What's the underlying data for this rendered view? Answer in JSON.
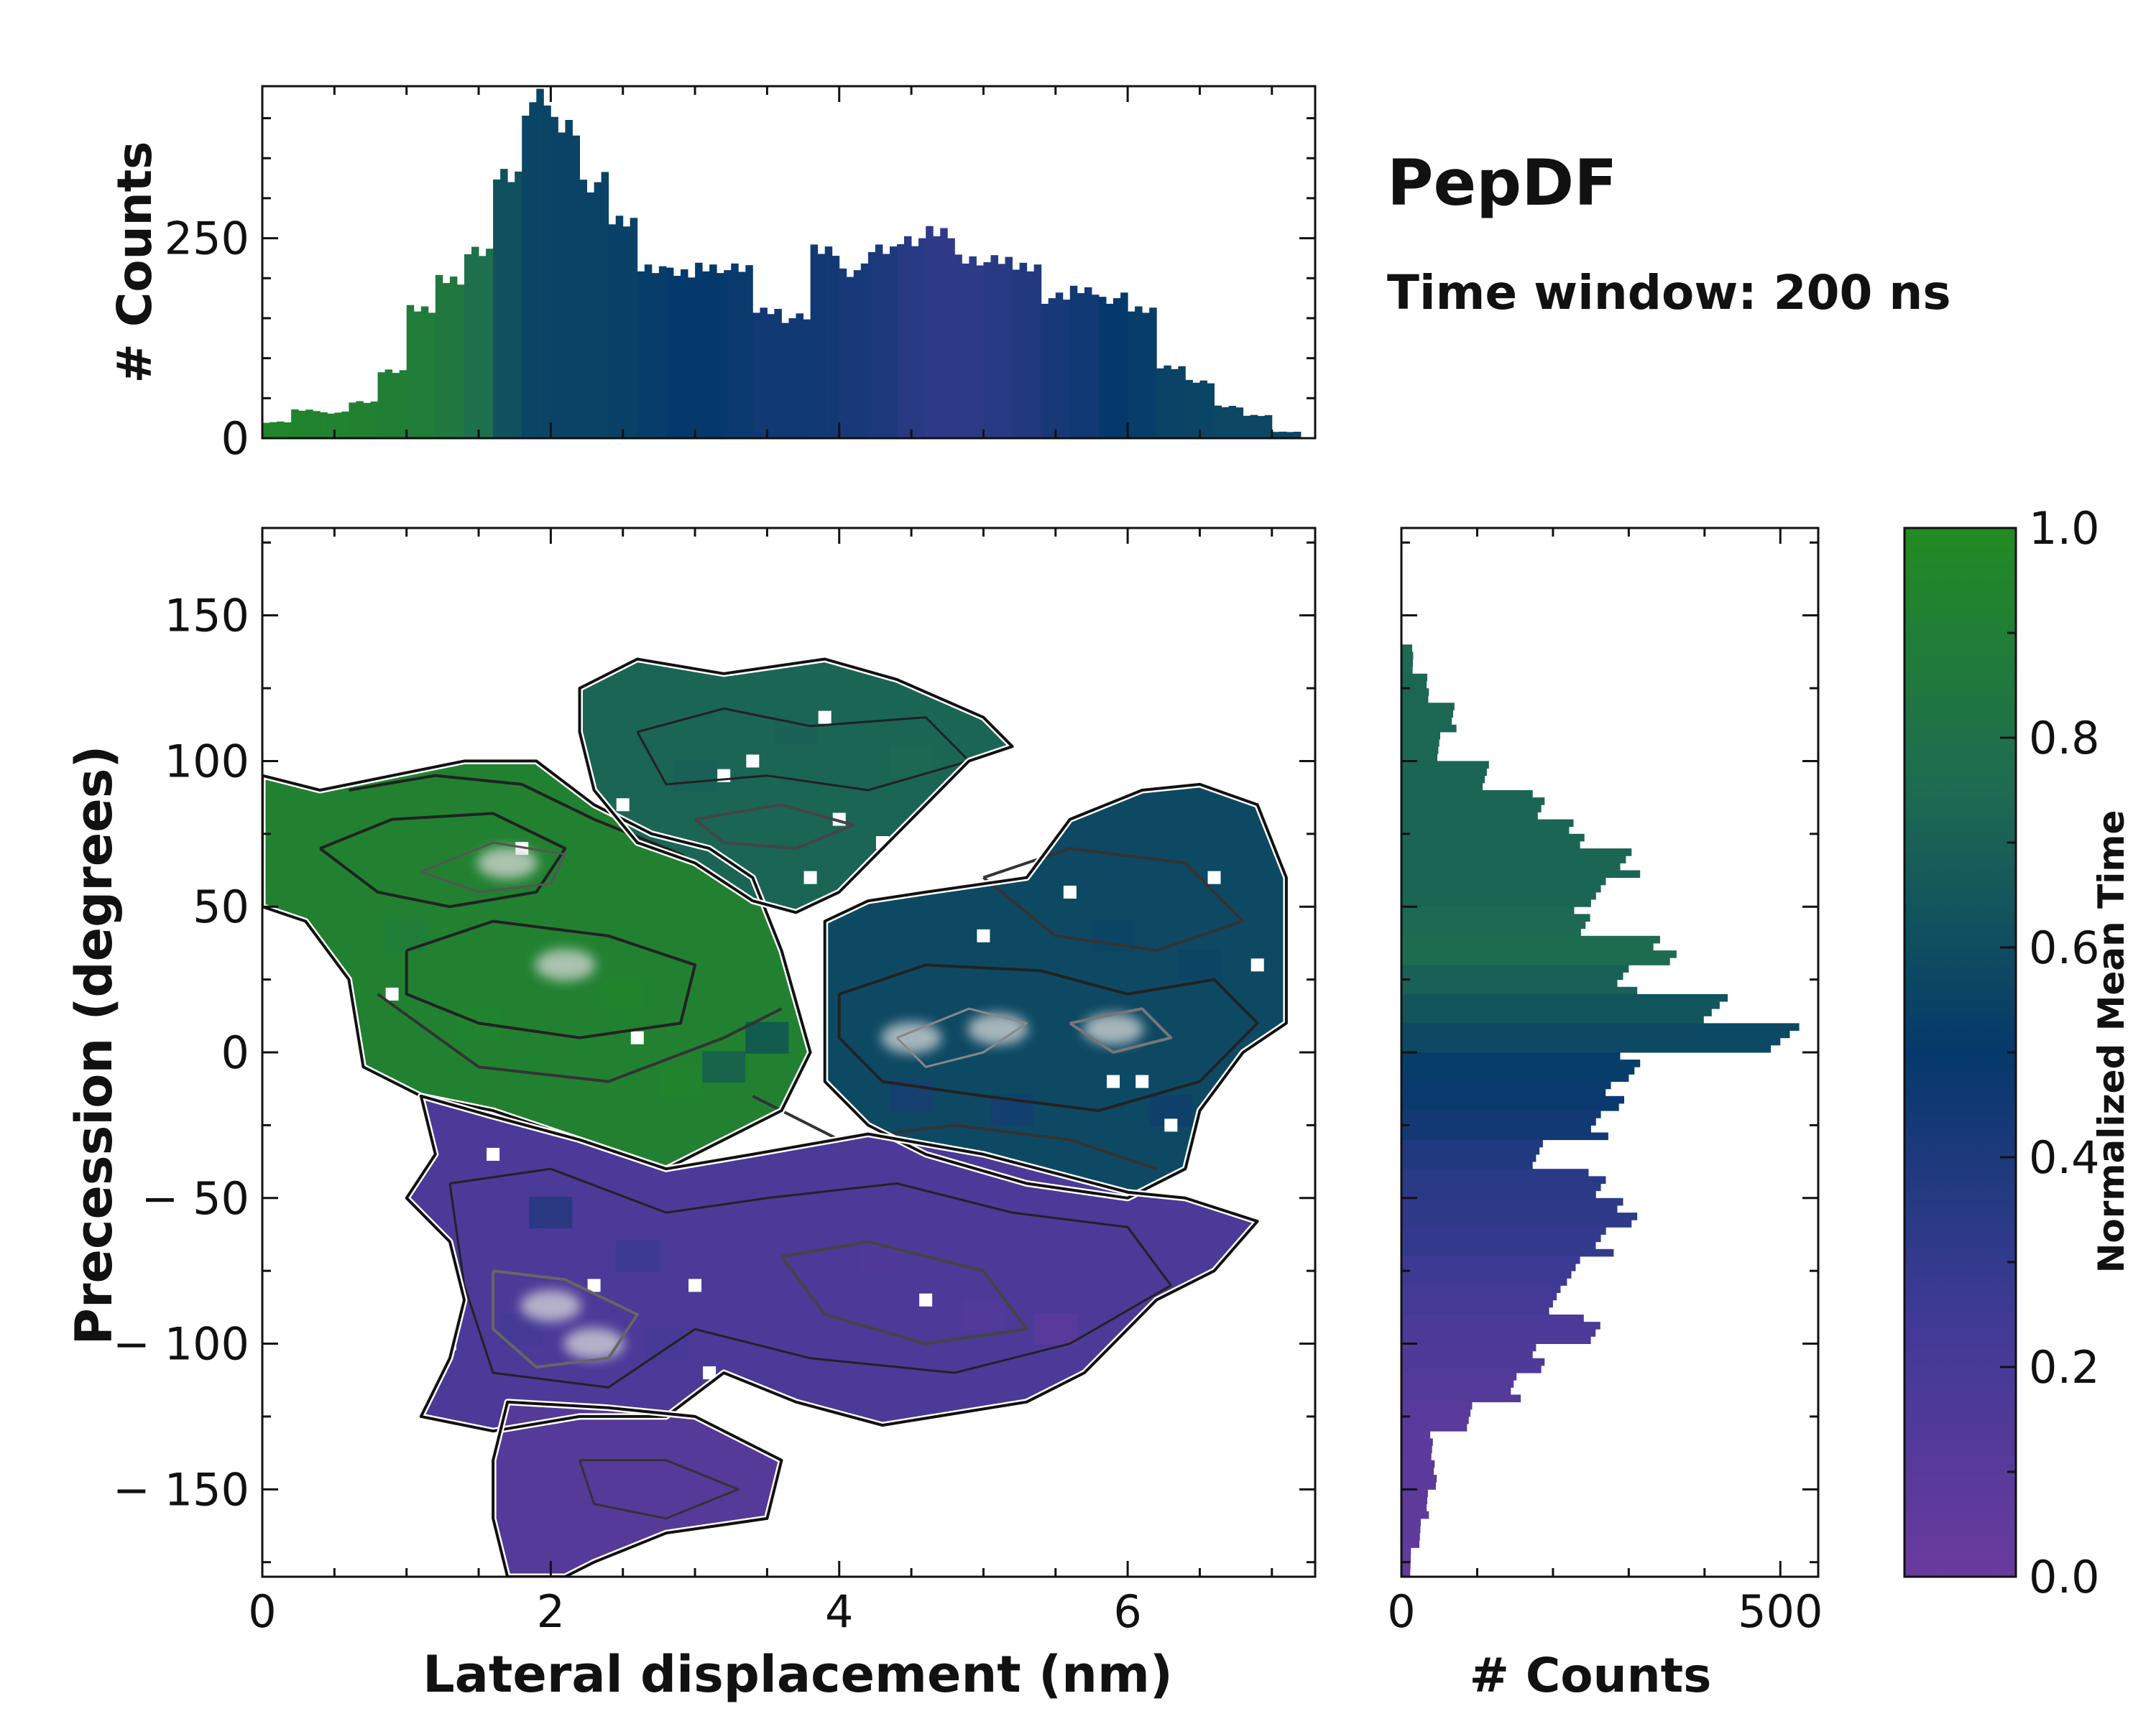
{
  "chart_data": {
    "type": "heatmap",
    "title": "PepDF",
    "subtitle": "Time window: 200 ns",
    "main": {
      "xlabel": "Lateral displacement (nm)",
      "ylabel": "Precession (degrees)",
      "xlim": [
        0,
        7.3
      ],
      "ylim": [
        -180,
        180
      ],
      "xticks": [
        0,
        2,
        4,
        6
      ],
      "yticks": [
        150,
        100,
        50,
        0,
        -50,
        -100,
        -150
      ],
      "ytick_labels": [
        "150",
        "100",
        "50",
        "0",
        "− 50",
        "− 100",
        "− 150"
      ],
      "regions": [
        {
          "name": "upper-left-lobe",
          "x": [
            0.0,
            3.5
          ],
          "y": [
            -40,
            100
          ],
          "mean_time": 0.92
        },
        {
          "name": "top-lobe",
          "x": [
            2.2,
            5.2
          ],
          "y": [
            45,
            135
          ],
          "mean_time": 0.72
        },
        {
          "name": "right-lobe",
          "x": [
            3.9,
            7.1
          ],
          "y": [
            -50,
            95
          ],
          "mean_time": 0.58
        },
        {
          "name": "lower-middle",
          "x": [
            1.0,
            7.0
          ],
          "y": [
            -125,
            -20
          ],
          "mean_time": 0.18
        },
        {
          "name": "bottom-tail",
          "x": [
            1.6,
            3.6
          ],
          "y": [
            -180,
            -120
          ],
          "mean_time": 0.12
        }
      ],
      "hotspots": [
        [
          1.7,
          65
        ],
        [
          2.1,
          30
        ],
        [
          4.5,
          5
        ],
        [
          5.1,
          8
        ],
        [
          5.9,
          8
        ],
        [
          2.0,
          -87
        ],
        [
          2.3,
          -100
        ]
      ]
    },
    "top_histogram": {
      "ylabel": "# Counts",
      "yticks": [
        0,
        250
      ],
      "ylim": [
        0,
        440
      ],
      "x_centers": [
        0.1,
        0.3,
        0.5,
        0.7,
        0.9,
        1.1,
        1.3,
        1.5,
        1.7,
        1.9,
        2.1,
        2.3,
        2.5,
        2.7,
        2.9,
        3.1,
        3.3,
        3.5,
        3.7,
        3.9,
        4.1,
        4.3,
        4.5,
        4.7,
        4.9,
        5.1,
        5.3,
        5.5,
        5.7,
        5.9,
        6.1,
        6.3,
        6.5,
        6.7,
        6.9,
        7.1
      ],
      "counts": [
        20,
        35,
        32,
        45,
        85,
        160,
        200,
        230,
        330,
        420,
        390,
        320,
        270,
        215,
        205,
        215,
        210,
        160,
        150,
        235,
        210,
        235,
        250,
        255,
        225,
        220,
        215,
        175,
        185,
        175,
        160,
        90,
        70,
        40,
        28,
        8
      ],
      "mean_time": [
        0.95,
        0.94,
        0.93,
        0.92,
        0.9,
        0.88,
        0.85,
        0.78,
        0.62,
        0.56,
        0.55,
        0.55,
        0.54,
        0.52,
        0.5,
        0.5,
        0.48,
        0.45,
        0.45,
        0.44,
        0.42,
        0.4,
        0.35,
        0.32,
        0.33,
        0.35,
        0.38,
        0.42,
        0.45,
        0.5,
        0.52,
        0.55,
        0.56,
        0.57,
        0.57,
        0.56
      ]
    },
    "right_histogram": {
      "xlabel": "# Counts",
      "xticks": [
        0,
        500
      ],
      "xlim": [
        0,
        550
      ],
      "y_centers": [
        135,
        125,
        115,
        105,
        95,
        85,
        75,
        65,
        55,
        45,
        35,
        25,
        15,
        5,
        -5,
        -15,
        -25,
        -35,
        -45,
        -55,
        -65,
        -75,
        -85,
        -95,
        -105,
        -115,
        -125,
        -135,
        -145,
        -155,
        -165,
        -175
      ],
      "counts": [
        15,
        35,
        70,
        50,
        110,
        180,
        230,
        300,
        260,
        240,
        350,
        300,
        420,
        500,
        300,
        280,
        260,
        180,
        260,
        300,
        270,
        230,
        200,
        250,
        180,
        150,
        90,
        40,
        45,
        35,
        25,
        12
      ],
      "mean_time": [
        0.74,
        0.73,
        0.73,
        0.73,
        0.72,
        0.72,
        0.72,
        0.72,
        0.72,
        0.74,
        0.76,
        0.7,
        0.64,
        0.58,
        0.52,
        0.48,
        0.44,
        0.38,
        0.34,
        0.32,
        0.3,
        0.26,
        0.22,
        0.18,
        0.15,
        0.12,
        0.1,
        0.09,
        0.08,
        0.07,
        0.07,
        0.06
      ]
    },
    "colorbar": {
      "label": "Normalized Mean Time",
      "ticks": [
        "0.0",
        "0.2",
        "0.4",
        "0.6",
        "0.8",
        "1.0"
      ],
      "range": [
        0,
        1
      ],
      "colors": [
        "#6a3a9e",
        "#3f3a95",
        "#05396b",
        "#1e6b52",
        "#228b22"
      ]
    }
  }
}
